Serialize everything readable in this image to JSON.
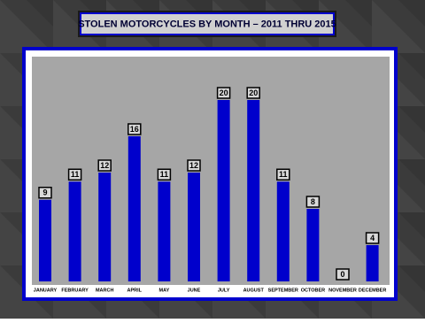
{
  "chart_data": {
    "type": "bar",
    "title": "STOLEN MOTORCYCLES BY MONTH – 2011 THRU 2015",
    "categories": [
      "JANUARY",
      "FEBRUARY",
      "MARCH",
      "APRIL",
      "MAY",
      "JUNE",
      "JULY",
      "AUGUST",
      "SEPTEMBER",
      "OCTOBER",
      "NOVEMBER",
      "DECEMBER"
    ],
    "values": [
      9,
      11,
      12,
      16,
      11,
      12,
      20,
      20,
      11,
      8,
      0,
      4
    ],
    "color": "#0000cc"
  }
}
